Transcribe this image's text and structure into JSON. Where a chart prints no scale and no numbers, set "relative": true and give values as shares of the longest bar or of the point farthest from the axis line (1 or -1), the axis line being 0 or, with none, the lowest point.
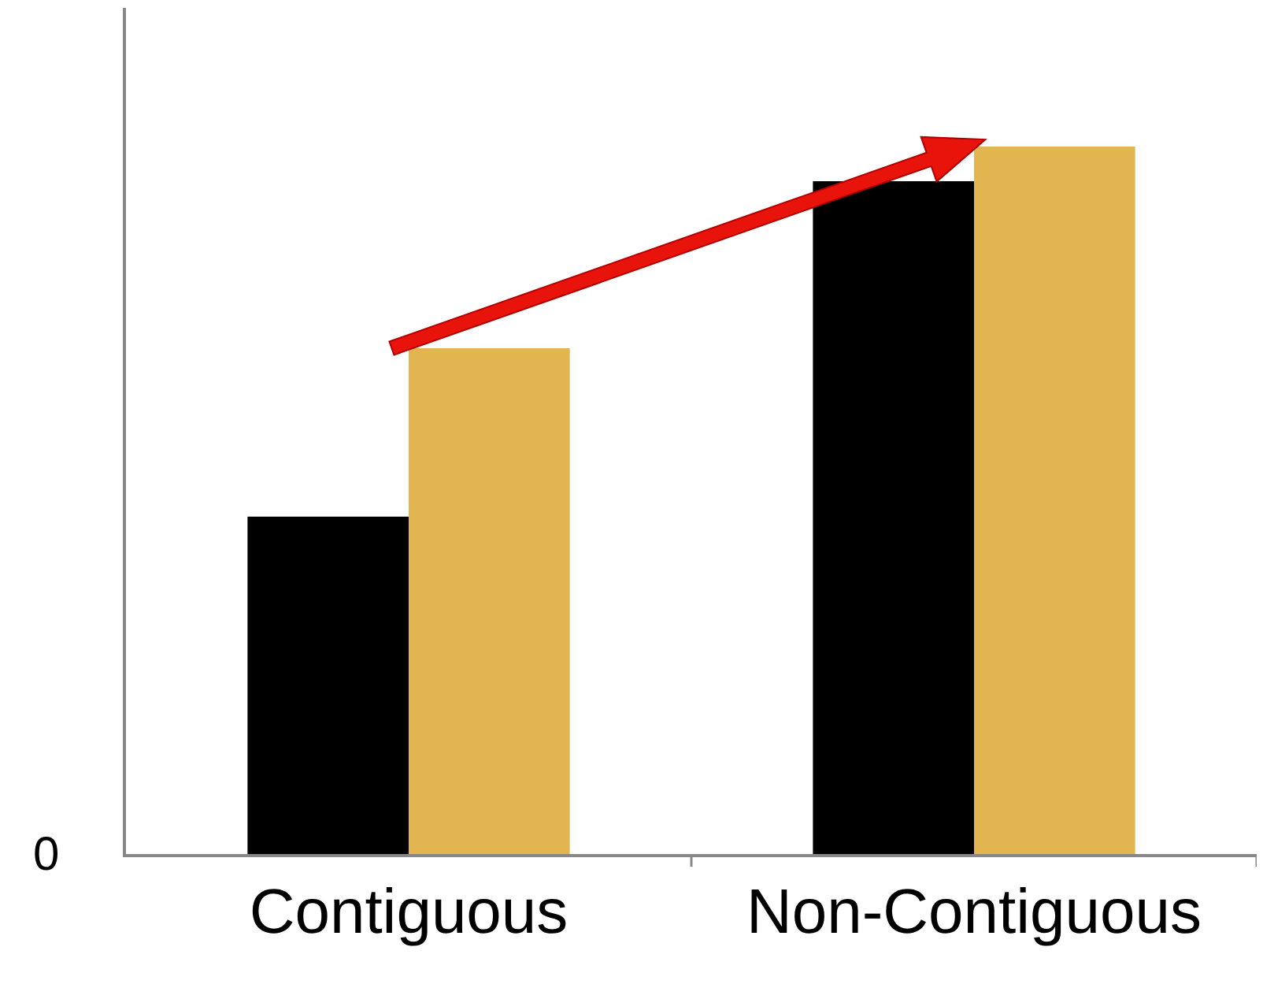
{
  "chart_data": {
    "type": "bar",
    "relative": true,
    "categories": [
      "Contiguous",
      "Non-Contiguous"
    ],
    "series": [
      {
        "color": "#000000",
        "values": [
          0.477,
          0.951
        ]
      },
      {
        "color": "#e2b550",
        "values": [
          0.715,
          1
        ]
      }
    ],
    "annotations": [
      "0"
    ]
  }
}
